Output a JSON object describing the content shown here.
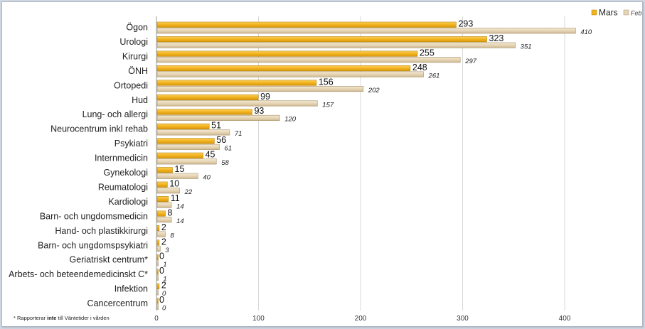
{
  "chart_data": {
    "type": "bar",
    "orientation": "horizontal",
    "categories": [
      "Ögon",
      "Urologi",
      "Kirurgi",
      "ÖNH",
      "Ortopedi",
      "Hud",
      "Lung- och allergi",
      "Neurocentrum inkl rehab",
      "Psykiatri",
      "Internmedicin",
      "Gynekologi",
      "Reumatologi",
      "Kardiologi",
      "Barn- och ungdomsmedicin",
      "Hand- och plastikkirurgi",
      "Barn- och ungdomspsykiatri",
      "Geriatriskt centrum*",
      "Arbets- och beteendemedicinskt C*",
      "Infektion",
      "Cancercentrum"
    ],
    "series": [
      {
        "name": "Mars",
        "values": [
          293,
          323,
          255,
          248,
          156,
          99,
          93,
          51,
          56,
          45,
          15,
          10,
          11,
          8,
          2,
          2,
          0,
          0,
          2,
          0
        ],
        "color": "#f2b21e"
      },
      {
        "name": "Feb",
        "values": [
          410,
          351,
          297,
          261,
          202,
          157,
          120,
          71,
          61,
          58,
          40,
          22,
          14,
          14,
          8,
          3,
          1,
          1,
          0,
          0
        ],
        "color": "#e6d5b4"
      }
    ],
    "xlim": [
      0,
      450
    ],
    "xticks": [
      0,
      100,
      200,
      300,
      400
    ],
    "grid": true,
    "legend_position": "top-right"
  },
  "footnote": {
    "prefix": "* Rapporterar ",
    "bold": "inte",
    "suffix": " till Väntetider i vården"
  }
}
